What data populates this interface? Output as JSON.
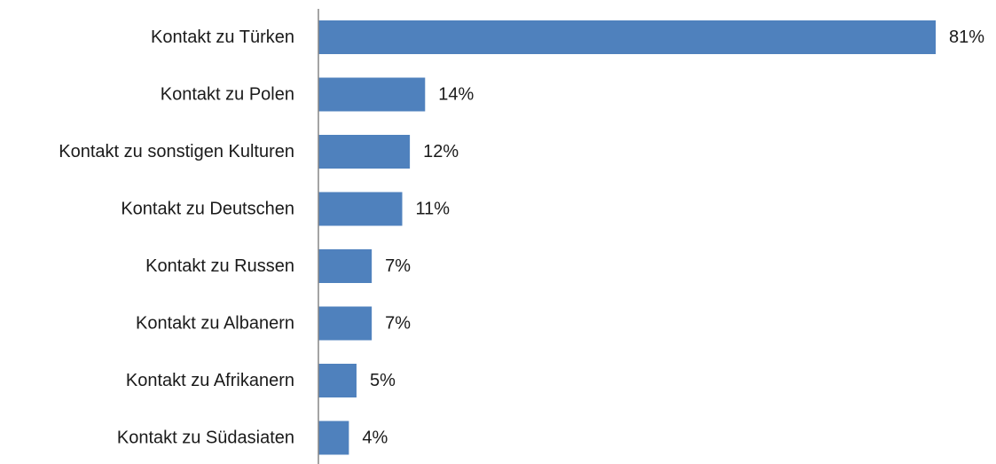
{
  "chart_data": {
    "type": "bar",
    "orientation": "horizontal",
    "categories": [
      "Kontakt zu Türken",
      "Kontakt zu Polen",
      "Kontakt zu sonstigen Kulturen",
      "Kontakt zu Deutschen",
      "Kontakt zu Russen",
      "Kontakt zu Albanern",
      "Kontakt zu Afrikanern",
      "Kontakt zu Südasiaten"
    ],
    "values": [
      81,
      14,
      12,
      11,
      7,
      7,
      5,
      4
    ],
    "value_labels": [
      "81%",
      "14%",
      "12%",
      "11%",
      "7%",
      "7%",
      "5%",
      "4%"
    ],
    "unit": "%",
    "xlim": [
      0,
      81
    ],
    "grid": false,
    "legend": "none",
    "bar_color": "#4f81bd",
    "axis_color": "#868686"
  }
}
